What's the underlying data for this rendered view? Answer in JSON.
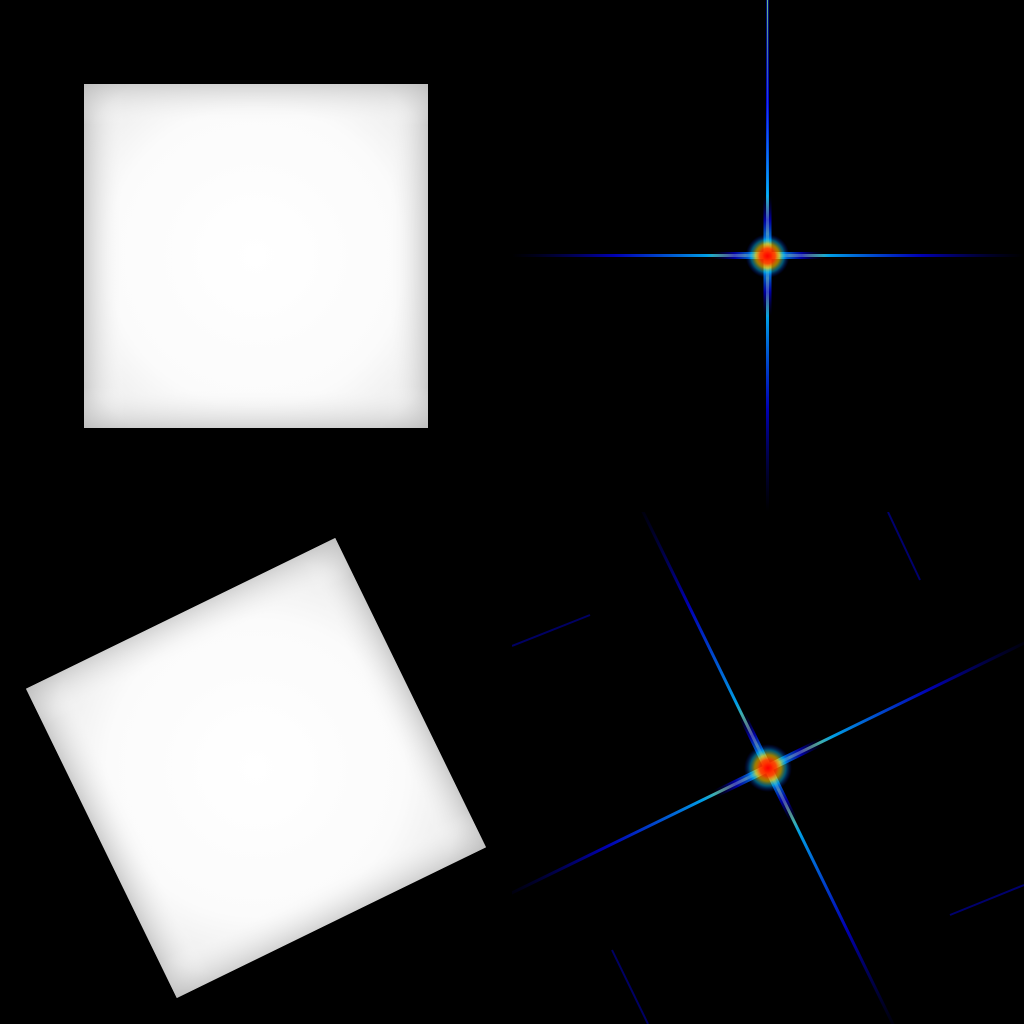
{
  "figure": {
    "background_color": "#000000",
    "square_color": "#ffffff",
    "square_edge_shade": "#b8b8b8",
    "spectrum_colormap": [
      "#00007a",
      "#0000ff",
      "#00a0ff",
      "#00ffff",
      "#ffff00",
      "#ff8000",
      "#ff0000"
    ],
    "panels": [
      {
        "id": "square-upright",
        "kind": "rectangle-image",
        "rotation_deg": 0
      },
      {
        "id": "spectrum-upright",
        "kind": "fft-magnitude",
        "rotation_deg": 0
      },
      {
        "id": "square-rotated",
        "kind": "rectangle-image",
        "rotation_deg": -26
      },
      {
        "id": "spectrum-rotated",
        "kind": "fft-magnitude",
        "rotation_deg": -26
      }
    ]
  }
}
